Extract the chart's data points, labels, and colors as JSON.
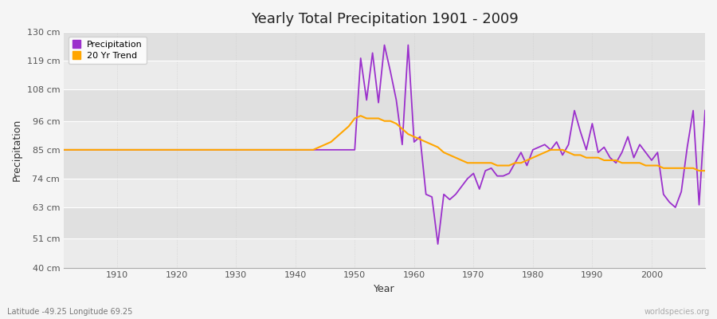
{
  "title": "Yearly Total Precipitation 1901 - 2009",
  "xlabel": "Year",
  "ylabel": "Precipitation",
  "subtitle": "Latitude -49.25 Longitude 69.25",
  "watermark": "worldspecies.org",
  "ylim": [
    40,
    130
  ],
  "yticks": [
    40,
    51,
    63,
    74,
    85,
    96,
    108,
    119,
    130
  ],
  "ytick_labels": [
    "40 cm",
    "51 cm",
    "63 cm",
    "74 cm",
    "85 cm",
    "96 cm",
    "108 cm",
    "119 cm",
    "130 cm"
  ],
  "xlim": [
    1901,
    2009
  ],
  "xticks": [
    1910,
    1920,
    1930,
    1940,
    1950,
    1960,
    1970,
    1980,
    1990,
    2000
  ],
  "precip_color": "#9B30CC",
  "trend_color": "#FFA500",
  "bg_color": "#F5F5F5",
  "plot_bg_light": "#EBEBEB",
  "plot_bg_dark": "#E0E0E0",
  "grid_color": "#FFFFFF",
  "legend_labels": [
    "Precipitation",
    "20 Yr Trend"
  ],
  "years": [
    1901,
    1902,
    1903,
    1904,
    1905,
    1906,
    1907,
    1908,
    1909,
    1910,
    1911,
    1912,
    1913,
    1914,
    1915,
    1916,
    1917,
    1918,
    1919,
    1920,
    1921,
    1922,
    1923,
    1924,
    1925,
    1926,
    1927,
    1928,
    1929,
    1930,
    1931,
    1932,
    1933,
    1934,
    1935,
    1936,
    1937,
    1938,
    1939,
    1940,
    1941,
    1942,
    1943,
    1944,
    1945,
    1946,
    1947,
    1948,
    1949,
    1950,
    1951,
    1952,
    1953,
    1954,
    1955,
    1956,
    1957,
    1958,
    1959,
    1960,
    1961,
    1962,
    1963,
    1964,
    1965,
    1966,
    1967,
    1968,
    1969,
    1970,
    1971,
    1972,
    1973,
    1974,
    1975,
    1976,
    1977,
    1978,
    1979,
    1980,
    1981,
    1982,
    1983,
    1984,
    1985,
    1986,
    1987,
    1988,
    1989,
    1990,
    1991,
    1992,
    1993,
    1994,
    1995,
    1996,
    1997,
    1998,
    1999,
    2000,
    2001,
    2002,
    2003,
    2004,
    2005,
    2006,
    2007,
    2008,
    2009
  ],
  "precip": [
    85,
    85,
    85,
    85,
    85,
    85,
    85,
    85,
    85,
    85,
    85,
    85,
    85,
    85,
    85,
    85,
    85,
    85,
    85,
    85,
    85,
    85,
    85,
    85,
    85,
    85,
    85,
    85,
    85,
    85,
    85,
    85,
    85,
    85,
    85,
    85,
    85,
    85,
    85,
    85,
    85,
    85,
    85,
    85,
    85,
    85,
    85,
    85,
    85,
    85,
    120,
    104,
    122,
    103,
    125,
    115,
    104,
    87,
    125,
    88,
    90,
    68,
    67,
    49,
    68,
    66,
    68,
    71,
    74,
    76,
    70,
    77,
    78,
    75,
    75,
    76,
    80,
    84,
    79,
    85,
    86,
    87,
    85,
    88,
    83,
    87,
    100,
    92,
    85,
    95,
    84,
    86,
    82,
    80,
    84,
    90,
    82,
    87,
    84,
    81,
    84,
    68,
    65,
    63,
    69,
    86,
    100,
    64,
    100
  ],
  "trend": [
    85,
    85,
    85,
    85,
    85,
    85,
    85,
    85,
    85,
    85,
    85,
    85,
    85,
    85,
    85,
    85,
    85,
    85,
    85,
    85,
    85,
    85,
    85,
    85,
    85,
    85,
    85,
    85,
    85,
    85,
    85,
    85,
    85,
    85,
    85,
    85,
    85,
    85,
    85,
    85,
    85,
    85,
    85,
    86,
    87,
    88,
    90,
    92,
    94,
    97,
    98,
    97,
    97,
    97,
    96,
    96,
    95,
    93,
    91,
    90,
    89,
    88,
    87,
    86,
    84,
    83,
    82,
    81,
    80,
    80,
    80,
    80,
    80,
    79,
    79,
    79,
    80,
    80,
    81,
    82,
    83,
    84,
    85,
    85,
    85,
    84,
    83,
    83,
    82,
    82,
    82,
    81,
    81,
    81,
    80,
    80,
    80,
    80,
    79,
    79,
    79,
    78,
    78,
    78,
    78,
    78,
    78,
    77,
    77
  ]
}
